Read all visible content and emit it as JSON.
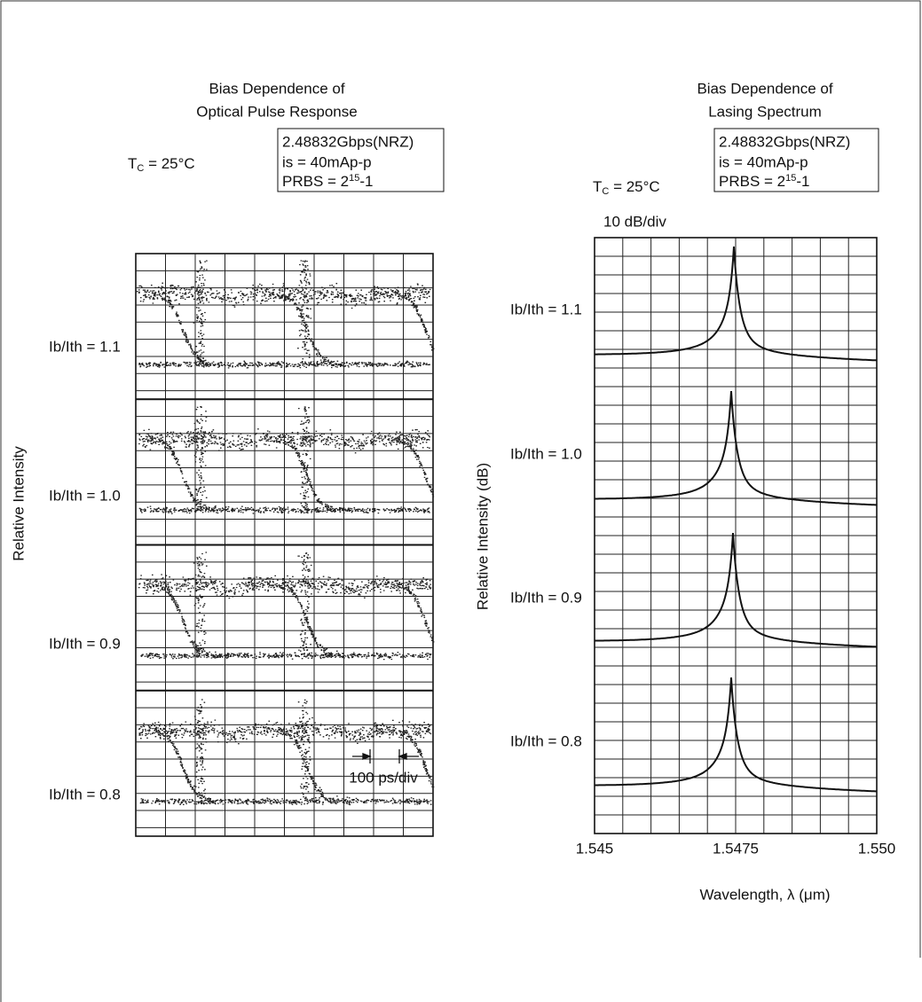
{
  "left_figure": {
    "title_lines": [
      "Bias Dependence of",
      "Optical Pulse Response"
    ],
    "conditions": {
      "rate": "2.48832Gbps(NRZ)",
      "current": "is = 40mAp-p",
      "prbs": {
        "text": "PRBS = 2",
        "sup": "15",
        "rest": "-1"
      }
    },
    "temperature": {
      "symbol": "T",
      "subscript": "C",
      "value": " = 25°C"
    },
    "y_axis_label": "Relative Intensity",
    "trace_labels": [
      "Ib/Ith = 1.1",
      "Ib/Ith = 1.0",
      "Ib/Ith = 0.9",
      "Ib/Ith = 0.8"
    ],
    "scale": "100 ps/div"
  },
  "right_figure": {
    "title_lines": [
      "Bias Dependence of",
      "Lasing Spectrum"
    ],
    "conditions": {
      "rate": "2.48832Gbps(NRZ)",
      "current": "is = 40mAp-p",
      "prbs": {
        "text": "PRBS = 2",
        "sup": "15",
        "rest": "-1"
      }
    },
    "temperature": {
      "symbol": "T",
      "subscript": "C",
      "value": " = 25°C"
    },
    "scale": "10 dB/div",
    "y_axis_label": "Relative Intensity (dB)",
    "x_axis_label": "Wavelength, λ (μm)",
    "x_tick_labels": [
      "1.545",
      "1.5475",
      "1.550"
    ],
    "trace_labels": [
      "Ib/Ith = 1.1",
      "Ib/Ith = 1.0",
      "Ib/Ith = 0.9",
      "Ib/Ith = 0.8"
    ]
  }
}
